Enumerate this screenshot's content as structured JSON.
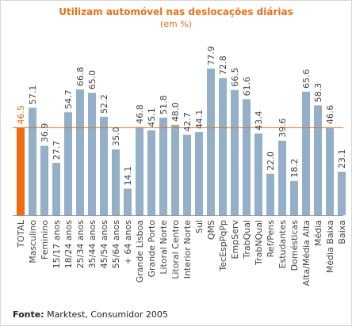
{
  "title": "Utilizam automóvel nas deslocações diárias",
  "subtitle": "(em %)",
  "source_label": "Fonte:",
  "source_text": "Marktest, Consumidor 2005",
  "colors": {
    "bar": "#94afc8",
    "highlight": "#f06a12",
    "reference_line": "#e0701e",
    "axis": "#999999",
    "title": "#e8701a",
    "label": "#444444"
  },
  "chart_data": {
    "type": "bar",
    "categories": [
      "TOTAL",
      "Masculino",
      "Feminino",
      "15/17 anos",
      "18/24 anos",
      "25/34 anos",
      "35/44 anos",
      "45/54 anos",
      "55/64 anos",
      "+ 64 anos",
      "Grande Lisboa",
      "Grande Porto",
      "Litoral Norte",
      "Litoral Centro",
      "Interior Norte",
      "Sul",
      "QMS",
      "TecEspPqPp",
      "EmpServ",
      "TrabQual",
      "TrabNQual",
      "Ref/Pens",
      "Estudantes",
      "Domésticas",
      "Alta/Média Alta",
      "Média",
      "Média Baixa",
      "Baixa"
    ],
    "value_labels": [
      "46.5",
      "57.1",
      "36.9",
      "27.7",
      "54.7",
      "66.8",
      "65.0",
      "52.2",
      "35.0",
      "14.1",
      "46.8",
      "45.1",
      "51.8",
      "48.0",
      "42.7",
      "44.1",
      "77.9",
      "72.8",
      "66.5",
      "61.6",
      "43.4",
      "22.0",
      "39.6",
      "18.2",
      "65.6",
      "58.3",
      "46.6",
      "23.1"
    ],
    "values": [
      46.5,
      57.1,
      36.9,
      27.7,
      54.7,
      66.8,
      65.0,
      52.2,
      35.0,
      14.1,
      46.8,
      45.1,
      51.8,
      48.0,
      42.7,
      44.1,
      77.9,
      72.8,
      66.5,
      61.6,
      43.4,
      22.0,
      39.6,
      18.2,
      65.6,
      58.3,
      46.6,
      23.1
    ],
    "highlight_index": 0,
    "reference_value": 46.5,
    "ylim": [
      0,
      80
    ],
    "grid": false
  }
}
